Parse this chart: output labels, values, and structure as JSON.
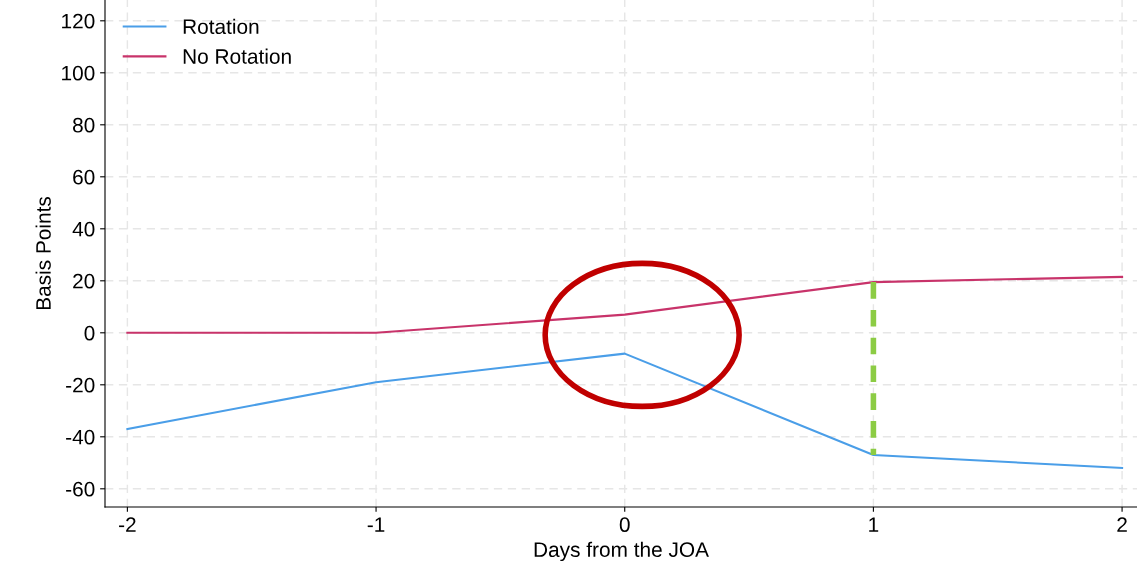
{
  "chart_data": {
    "type": "line",
    "xlabel": "Days from the JOA",
    "ylabel": "Basis Points",
    "x": [
      -2,
      -1,
      0,
      1,
      2
    ],
    "series": [
      {
        "name": "Rotation",
        "color": "#4a9ee8",
        "values": [
          -37,
          -19,
          -8,
          -47,
          -52
        ]
      },
      {
        "name": "No Rotation",
        "color": "#c8336a",
        "values": [
          0,
          0,
          7,
          19.5,
          21.5
        ]
      },
      {
        "color": "#8ccc44",
        "x": [
          1,
          1
        ],
        "values": [
          19.5,
          -47
        ],
        "line_style": "dashed"
      }
    ],
    "xlim": [
      -2.09,
      2.06
    ],
    "ylim": [
      -67,
      128
    ],
    "xticks": [
      {
        "value": -2,
        "label": "-2"
      },
      {
        "value": -1,
        "label": "-1"
      },
      0,
      1,
      2
    ],
    "yticks": [
      {
        "value": -60,
        "label": "-60"
      },
      {
        "value": -40,
        "label": "-40"
      },
      {
        "value": -20,
        "label": "-20"
      },
      0,
      20,
      40,
      60,
      80,
      100,
      120
    ],
    "grid": true,
    "legend": "top left",
    "line_style": "solid",
    "marker": "none"
  }
}
